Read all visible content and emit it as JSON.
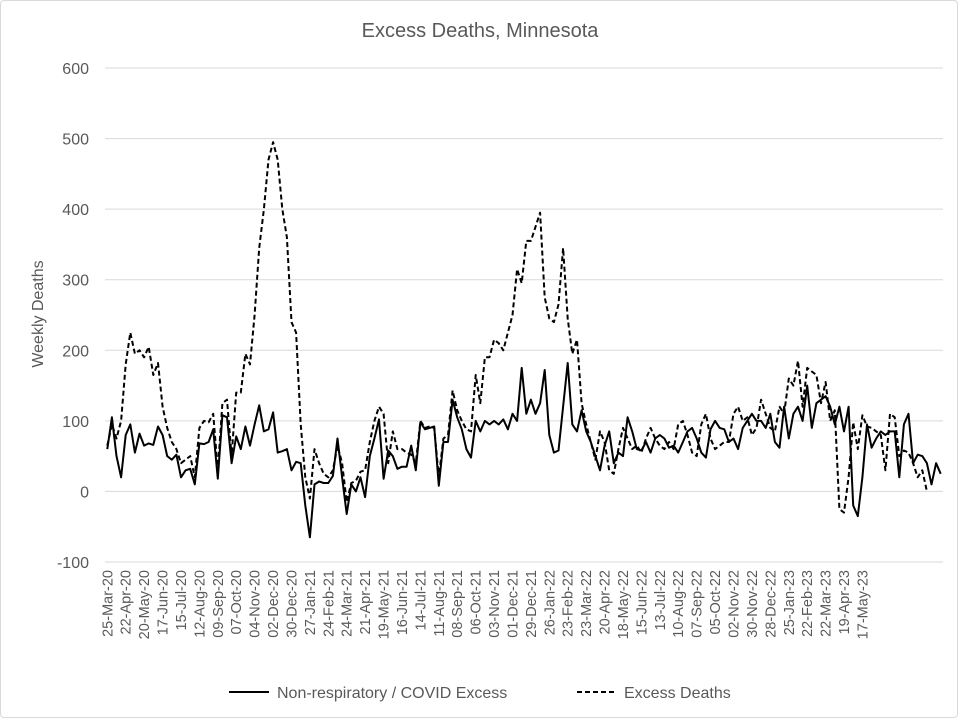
{
  "chart_data": {
    "type": "line",
    "title": "Excess Deaths, Minnesota",
    "xlabel": "",
    "ylabel": "Weekly Deaths",
    "ylim": [
      -100,
      600
    ],
    "yticks": [
      -100,
      0,
      100,
      200,
      300,
      400,
      500,
      600
    ],
    "grid": true,
    "legend_position": "bottom",
    "x_start": "25-Mar-20",
    "x_tick_labels": [
      "25-Mar-20",
      "22-Apr-20",
      "20-May-20",
      "17-Jun-20",
      "15-Jul-20",
      "12-Aug-20",
      "09-Sep-20",
      "07-Oct-20",
      "04-Nov-20",
      "02-Dec-20",
      "30-Dec-20",
      "27-Jan-21",
      "24-Feb-21",
      "24-Mar-21",
      "21-Apr-21",
      "19-May-21",
      "16-Jun-21",
      "14-Jul-21",
      "11-Aug-21",
      "08-Sep-21",
      "06-Oct-21",
      "03-Nov-21",
      "01-Dec-21",
      "29-Dec-21",
      "26-Jan-22",
      "23-Feb-22",
      "23-Mar-22",
      "20-Apr-22",
      "18-May-22",
      "15-Jun-22",
      "13-Jul-22",
      "10-Aug-22",
      "07-Sep-22",
      "05-Oct-22",
      "02-Nov-22",
      "30-Nov-22",
      "28-Dec-22",
      "25-Jan-23",
      "22-Feb-23",
      "22-Mar-23",
      "19-Apr-23",
      "17-May-23"
    ],
    "series": [
      {
        "name": "Non-respiratory / COVID Excess",
        "style": "solid",
        "color": "#000000",
        "values": [
          60,
          105,
          50,
          20,
          80,
          95,
          55,
          82,
          65,
          68,
          66,
          92,
          80,
          50,
          45,
          52,
          20,
          30,
          32,
          10,
          68,
          67,
          70,
          88,
          18,
          108,
          105,
          40,
          78,
          60,
          92,
          65,
          95,
          122,
          85,
          88,
          112,
          55,
          57,
          60,
          30,
          42,
          40,
          -20,
          -65,
          10,
          14,
          12,
          12,
          22,
          75,
          20,
          -32,
          10,
          0,
          20,
          -8,
          50,
          75,
          102,
          18,
          58,
          50,
          32,
          35,
          35,
          65,
          30,
          98,
          88,
          90,
          92,
          8,
          70,
          70,
          130,
          105,
          88,
          60,
          48,
          100,
          85,
          100,
          95,
          100,
          95,
          102,
          88,
          110,
          100,
          175,
          110,
          130,
          110,
          125,
          172,
          80,
          55,
          58,
          120,
          182,
          95,
          85,
          115,
          85,
          70,
          50,
          30,
          65,
          85,
          40,
          55,
          50,
          105,
          85,
          60,
          58,
          70,
          55,
          75,
          80,
          75,
          62,
          65,
          55,
          70,
          85,
          90,
          75,
          55,
          48,
          88,
          100,
          90,
          88,
          70,
          75,
          60,
          90,
          100,
          110,
          100,
          100,
          90,
          110,
          70,
          62,
          120,
          75,
          110,
          120,
          100,
          150,
          90,
          125,
          130,
          135,
          120,
          95,
          120,
          85,
          120,
          -20,
          -35,
          20,
          95,
          62,
          75,
          85,
          80,
          85,
          85,
          20,
          95,
          110,
          40,
          52,
          50,
          40,
          10,
          40,
          25
        ]
      },
      {
        "name": "Excess Deaths",
        "style": "dashed",
        "color": "#000000",
        "values": [
          65,
          95,
          75,
          100,
          180,
          225,
          195,
          200,
          190,
          205,
          165,
          182,
          120,
          90,
          70,
          60,
          40,
          45,
          50,
          20,
          90,
          100,
          98,
          110,
          30,
          125,
          130,
          50,
          140,
          140,
          195,
          180,
          250,
          345,
          400,
          470,
          495,
          470,
          400,
          360,
          240,
          225,
          95,
          20,
          -10,
          60,
          40,
          25,
          20,
          30,
          65,
          40,
          -15,
          12,
          15,
          28,
          30,
          70,
          100,
          120,
          110,
          40,
          85,
          60,
          60,
          55,
          52,
          40,
          100,
          90,
          92,
          90,
          20,
          75,
          80,
          143,
          115,
          100,
          88,
          85,
          165,
          125,
          190,
          190,
          215,
          210,
          200,
          225,
          250,
          315,
          295,
          355,
          355,
          375,
          395,
          275,
          245,
          240,
          265,
          345,
          245,
          195,
          215,
          125,
          95,
          70,
          45,
          85,
          70,
          30,
          25,
          60,
          90,
          75,
          60,
          65,
          55,
          75,
          90,
          75,
          65,
          60,
          70,
          60,
          95,
          100,
          80,
          55,
          50,
          95,
          110,
          75,
          60,
          65,
          70,
          70,
          110,
          120,
          100,
          105,
          80,
          90,
          130,
          110,
          90,
          85,
          120,
          110,
          160,
          150,
          185,
          120,
          175,
          170,
          165,
          125,
          155,
          100,
          115,
          -25,
          -30,
          20,
          98,
          60,
          108,
          92,
          90,
          85,
          80,
          30,
          110,
          105,
          50,
          58,
          55,
          40,
          20,
          30,
          0
        ]
      }
    ]
  }
}
